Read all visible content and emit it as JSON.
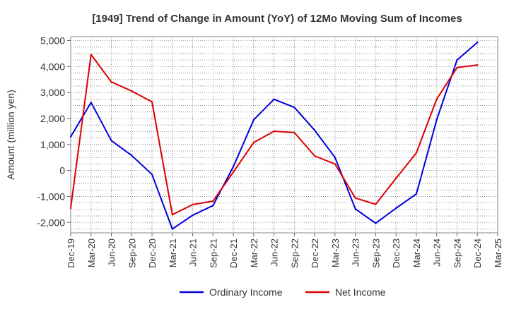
{
  "chart_data": {
    "type": "line",
    "title": "[1949]  Trend of Change in Amount (YoY) of 12Mo Moving Sum of Incomes",
    "xlabel": "",
    "ylabel": "Amount (million yen)",
    "ylim": [
      -2400,
      5150
    ],
    "yticks": [
      5000,
      4000,
      3000,
      2000,
      1000,
      0,
      -1000,
      -2000
    ],
    "ytick_labels": [
      "5,000",
      "4,000",
      "3,000",
      "2,000",
      "1,000",
      "0",
      "-1,000",
      "-2,000"
    ],
    "categories": [
      "Dec-19",
      "Mar-20",
      "Jun-20",
      "Sep-20",
      "Dec-20",
      "Mar-21",
      "Jun-21",
      "Sep-21",
      "Dec-21",
      "Mar-22",
      "Jun-22",
      "Sep-22",
      "Dec-22",
      "Mar-23",
      "Jun-23",
      "Sep-23",
      "Dec-23",
      "Mar-24",
      "Jun-24",
      "Sep-24",
      "Dec-24",
      "Mar-25"
    ],
    "grid": true,
    "legend": "bottom-center",
    "series": [
      {
        "name": "Ordinary Income",
        "color": "#0000dd",
        "values": [
          1300,
          2620,
          1150,
          580,
          -150,
          -2250,
          -1720,
          -1350,
          150,
          1950,
          2740,
          2430,
          1550,
          500,
          -1480,
          -2030,
          -1450,
          -900,
          1950,
          4250,
          4930,
          null
        ]
      },
      {
        "name": "Net Income",
        "color": "#dd0000",
        "values": [
          -1450,
          4460,
          3410,
          3060,
          2640,
          -1700,
          -1310,
          -1180,
          -60,
          1080,
          1510,
          1460,
          560,
          250,
          -1060,
          -1300,
          -300,
          680,
          2750,
          3960,
          4060,
          null
        ]
      }
    ]
  }
}
